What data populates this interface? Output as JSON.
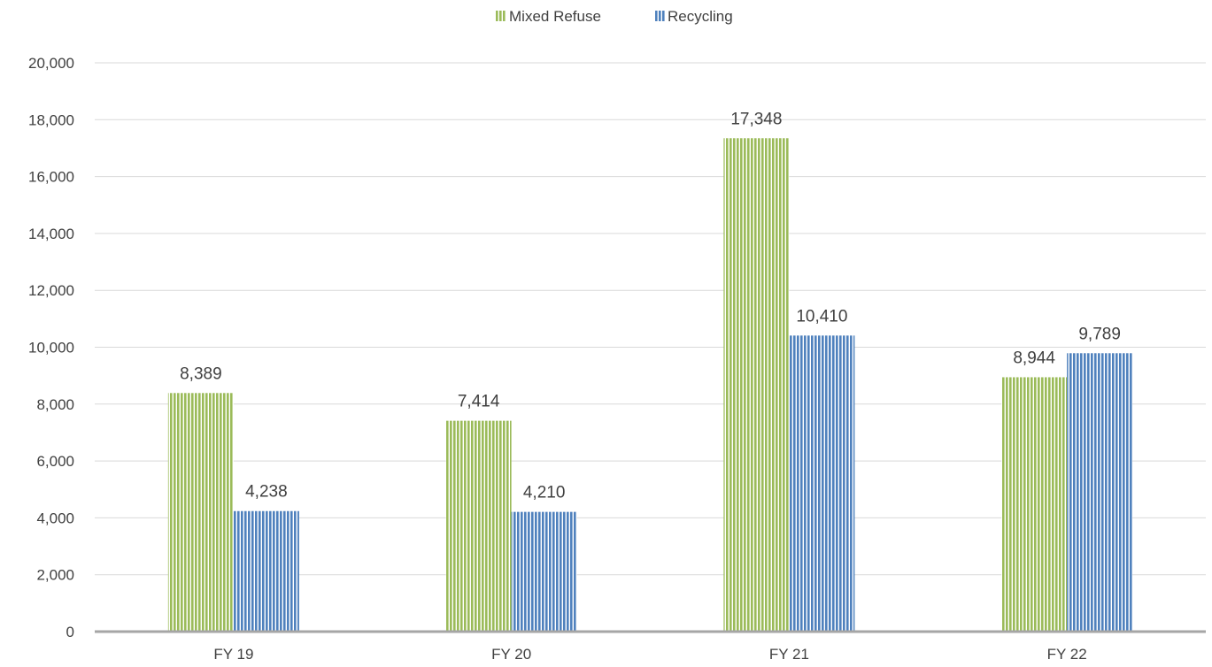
{
  "chart_data": {
    "type": "bar",
    "categories": [
      "FY 19",
      "FY 20",
      "FY 21",
      "FY 22"
    ],
    "series": [
      {
        "name": "Mixed Refuse",
        "values": [
          8389,
          7414,
          17348,
          8944
        ],
        "labels": [
          "8,389",
          "7,414",
          "17,348",
          "8,944"
        ],
        "color": "#9bbb59",
        "stripe_color": "#ffffff"
      },
      {
        "name": "Recycling",
        "values": [
          4238,
          4210,
          10410,
          9789
        ],
        "labels": [
          "4,238",
          "4,210",
          "10,410",
          "9,789"
        ],
        "color": "#4f81bd",
        "stripe_color": "#ffffff"
      }
    ],
    "ylim": [
      0,
      20000
    ],
    "yticks": [
      0,
      2000,
      4000,
      6000,
      8000,
      10000,
      12000,
      14000,
      16000,
      18000,
      20000
    ],
    "ytick_labels": [
      "0",
      "2,000",
      "4,000",
      "6,000",
      "8,000",
      "10,000",
      "12,000",
      "14,000",
      "16,000",
      "18,000",
      "20,000"
    ],
    "legend_position": "top-center",
    "grid": true,
    "bar_fill_pattern": "vertical-stripes"
  }
}
